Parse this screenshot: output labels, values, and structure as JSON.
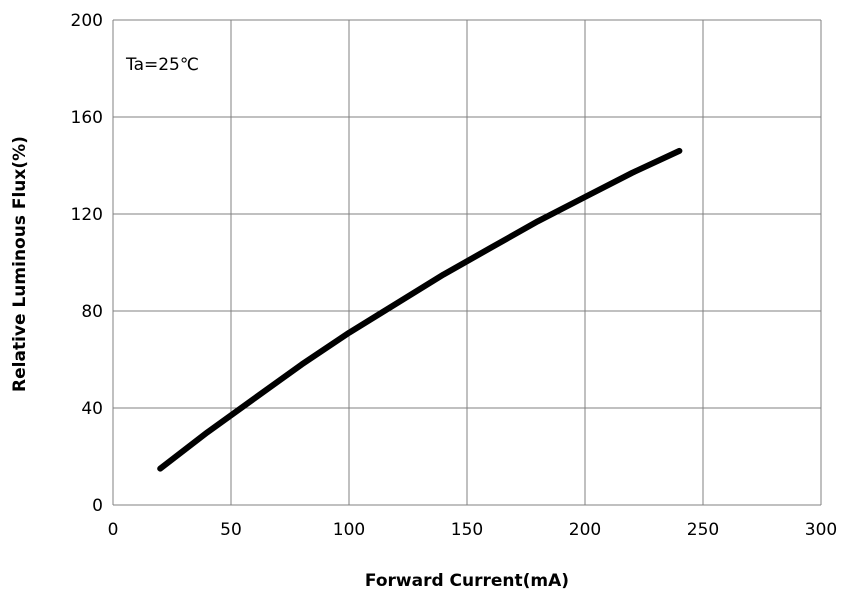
{
  "chart_data": {
    "type": "line",
    "title": "",
    "xlabel": "Forward Current(mA)",
    "ylabel": "Relative Luminous Flux(%)",
    "xlim": [
      0,
      300
    ],
    "ylim": [
      0,
      200
    ],
    "xticks": [
      0,
      50,
      100,
      150,
      200,
      250,
      300
    ],
    "yticks": [
      0,
      40,
      80,
      120,
      160,
      200
    ],
    "grid": true,
    "annotation": "Ta=25℃",
    "colors": {
      "line": "#000000",
      "grid": "#808080"
    },
    "series": [
      {
        "x": [
          20,
          40,
          60,
          80,
          100,
          120,
          140,
          160,
          180,
          200,
          220,
          240
        ],
        "y": [
          15,
          30,
          44,
          58,
          71,
          83,
          95,
          106,
          117,
          127,
          137,
          146
        ]
      }
    ]
  }
}
